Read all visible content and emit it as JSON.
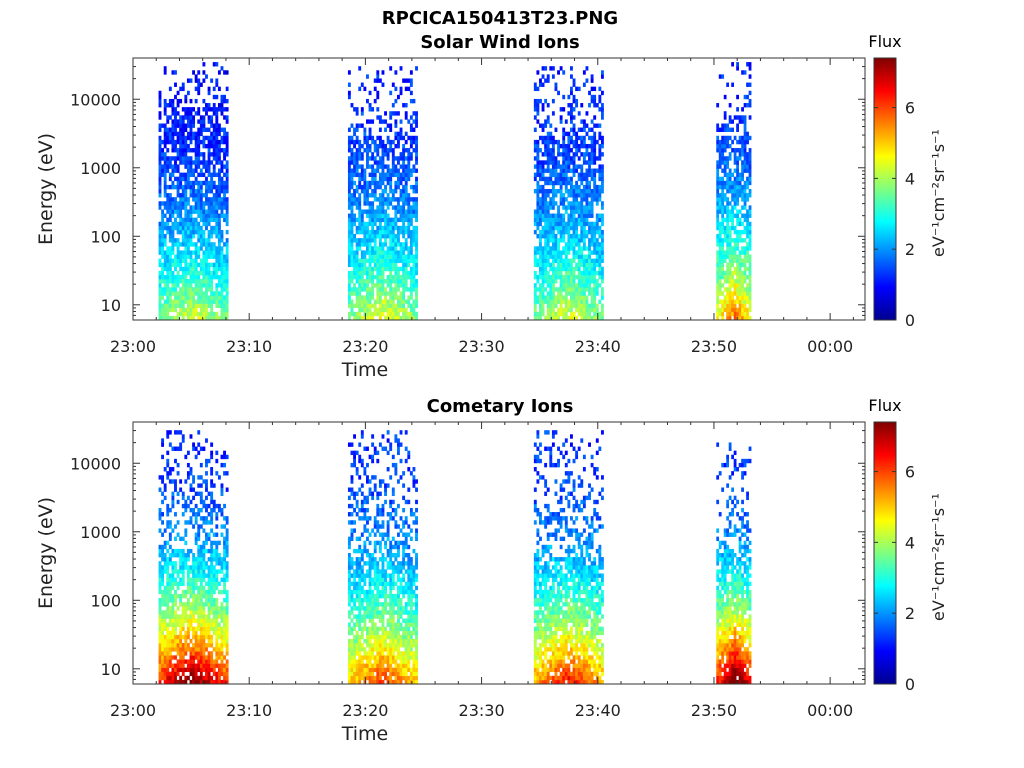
{
  "figure_title": "RPCICA150413T23.PNG",
  "chart_data": [
    {
      "type": "heatmap",
      "title": "Solar Wind Ions",
      "xlabel": "Time",
      "ylabel": "Energy (eV)",
      "x_ticks": [
        "23:00",
        "23:10",
        "23:20",
        "23:30",
        "23:40",
        "23:50",
        "00:00"
      ],
      "x_range_minutes": [
        0,
        63
      ],
      "y_scale": "log",
      "y_ticks": [
        10,
        100,
        1000,
        10000
      ],
      "y_tick_labels": [
        "10",
        "100",
        "1000",
        "10000"
      ],
      "y_range": [
        6,
        40000
      ],
      "colorbar": {
        "title": "Flux",
        "label": "eV⁻¹cm⁻²sr⁻¹s⁻¹",
        "ticks": [
          0,
          2,
          4,
          6
        ],
        "range": [
          0,
          7.4
        ],
        "colormap": "jet"
      },
      "bursts": [
        {
          "start_min": 2.2,
          "end_min": 8.2,
          "emin": 6,
          "emax": 35000,
          "dense_emin": 8000,
          "core_center_min": 5.0,
          "low_energy_flux": 3.6,
          "high_energy_flux": 1.0
        },
        {
          "start_min": 18.5,
          "end_min": 24.5,
          "emin": 6,
          "emax": 30000,
          "dense_emin": 3000,
          "core_center_min": 21.5,
          "low_energy_flux": 3.7,
          "high_energy_flux": 1.2
        },
        {
          "start_min": 34.5,
          "end_min": 40.5,
          "emin": 6,
          "emax": 30000,
          "dense_emin": 3000,
          "core_center_min": 37.5,
          "low_energy_flux": 3.6,
          "high_energy_flux": 1.2
        },
        {
          "start_min": 50.2,
          "end_min": 53.2,
          "emin": 6,
          "emax": 35000,
          "dense_emin": 3000,
          "core_center_min": 51.8,
          "low_energy_flux": 4.6,
          "high_energy_flux": 1.2
        }
      ]
    },
    {
      "type": "heatmap",
      "title": "Cometary Ions",
      "xlabel": "Time",
      "ylabel": "Energy (eV)",
      "x_ticks": [
        "23:00",
        "23:10",
        "23:20",
        "23:30",
        "23:40",
        "23:50",
        "00:00"
      ],
      "x_range_minutes": [
        0,
        63
      ],
      "y_scale": "log",
      "y_ticks": [
        10,
        100,
        1000,
        10000
      ],
      "y_tick_labels": [
        "10",
        "100",
        "1000",
        "10000"
      ],
      "y_range": [
        6,
        40000
      ],
      "colorbar": {
        "title": "Flux",
        "label": "eV⁻¹cm⁻²sr⁻¹s⁻¹",
        "ticks": [
          0,
          2,
          4,
          6
        ],
        "range": [
          0,
          7.4
        ],
        "colormap": "jet"
      },
      "bursts": [
        {
          "start_min": 2.2,
          "end_min": 8.2,
          "emin": 6,
          "emax": 35000,
          "dense_emin": 600,
          "core_center_min": 5.0,
          "low_energy_flux": 6.2,
          "high_energy_flux": 1.2
        },
        {
          "start_min": 18.5,
          "end_min": 24.5,
          "emin": 6,
          "emax": 30000,
          "dense_emin": 500,
          "core_center_min": 21.5,
          "low_energy_flux": 5.0,
          "high_energy_flux": 1.3
        },
        {
          "start_min": 34.5,
          "end_min": 40.5,
          "emin": 6,
          "emax": 30000,
          "dense_emin": 400,
          "core_center_min": 37.5,
          "low_energy_flux": 5.3,
          "high_energy_flux": 1.3
        },
        {
          "start_min": 50.2,
          "end_min": 53.2,
          "emin": 6,
          "emax": 20000,
          "dense_emin": 500,
          "core_center_min": 51.8,
          "low_energy_flux": 6.4,
          "high_energy_flux": 1.3
        }
      ]
    }
  ]
}
